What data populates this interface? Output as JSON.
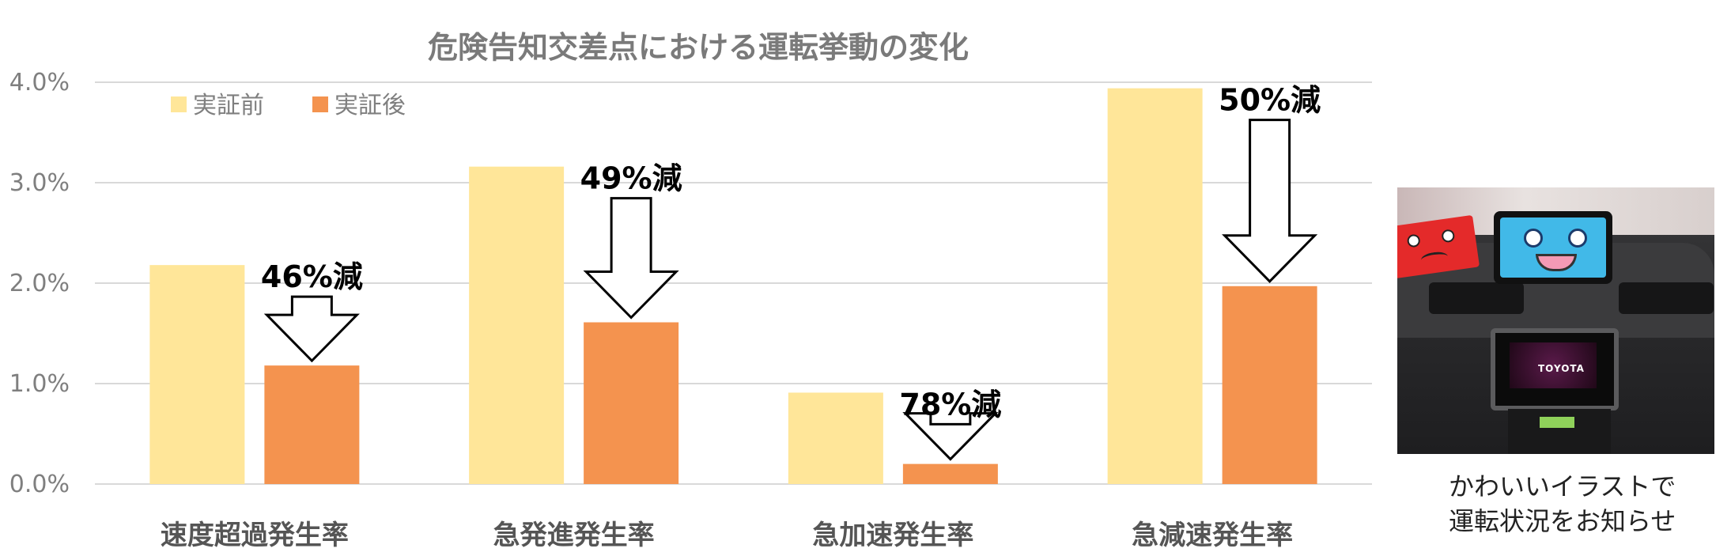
{
  "chart_data": {
    "type": "bar",
    "title": "危険告知交差点における運転挙動の変化",
    "categories": [
      "速度超過発生率",
      "急発進発生率",
      "急加速発生率",
      "急減速発生率"
    ],
    "series": [
      {
        "name": "実証前",
        "values": [
          2.18,
          3.16,
          0.91,
          3.94
        ]
      },
      {
        "name": "実証後",
        "values": [
          1.18,
          1.61,
          0.2,
          1.97
        ]
      }
    ],
    "ylim": [
      0,
      4
    ],
    "yticks": [
      "0.0%",
      "1.0%",
      "2.0%",
      "3.0%",
      "4.0%"
    ],
    "ytick_values": [
      0,
      1,
      2,
      3,
      4
    ],
    "grid": true,
    "legend": "top-left",
    "colors": [
      "#FFE699",
      "#F4934F"
    ],
    "annotations": [
      "46%減",
      "49%減",
      "78%減",
      "50%減"
    ]
  },
  "caption": {
    "line1": "かわいいイラストで",
    "line2": "運転状況をお知らせ"
  }
}
